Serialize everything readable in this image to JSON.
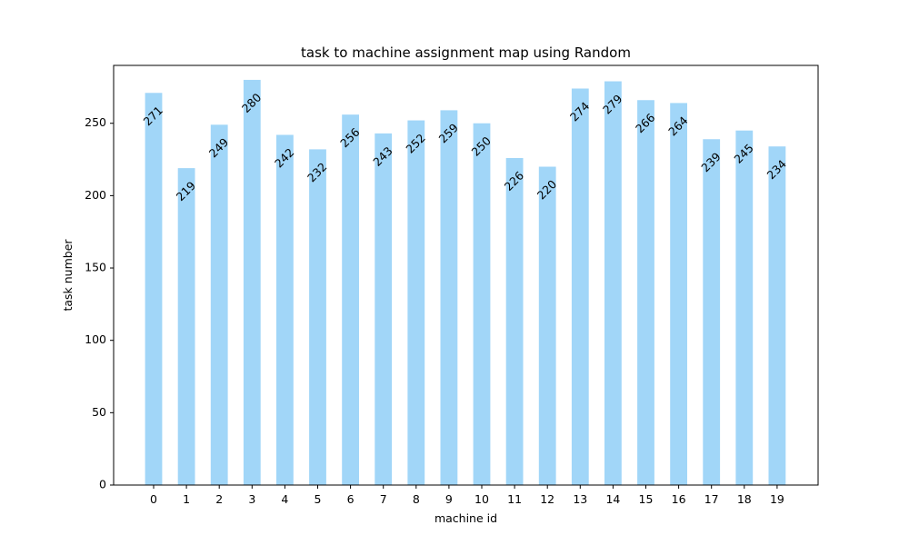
{
  "chart_data": {
    "type": "bar",
    "title": "task to machine assignment map using Random",
    "xlabel": "machine id",
    "ylabel": "task number",
    "categories": [
      "0",
      "1",
      "2",
      "3",
      "4",
      "5",
      "6",
      "7",
      "8",
      "9",
      "10",
      "11",
      "12",
      "13",
      "14",
      "15",
      "16",
      "17",
      "18",
      "19"
    ],
    "values": [
      271,
      219,
      249,
      280,
      242,
      232,
      256,
      243,
      252,
      259,
      250,
      226,
      220,
      274,
      279,
      266,
      264,
      239,
      245,
      234
    ],
    "ylim": [
      0,
      290
    ],
    "yticks": [
      0,
      50,
      100,
      150,
      200,
      250
    ],
    "bar_color": "#a1d6f8",
    "grid": false,
    "legend": "none"
  }
}
